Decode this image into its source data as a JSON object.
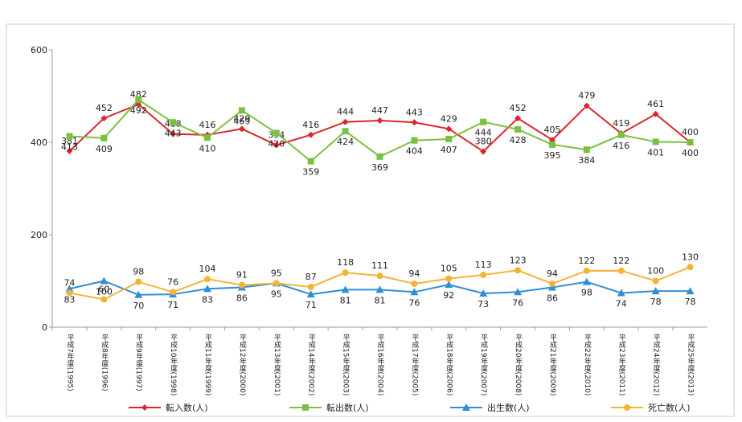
{
  "chart_data": {
    "type": "line",
    "categories": [
      "平成7年度(1995)",
      "平成8年度(1996)",
      "平成9年度(1997)",
      "平成10年度(1998)",
      "平成11年度(1999)",
      "平成12年度(2000)",
      "平成13年度(2001)",
      "平成14年度(2002)",
      "平成15年度(2003)",
      "平成16年度(2004)",
      "平成17年度(2005)",
      "平成18年度(2006)",
      "平成19年度(2007)",
      "平成20年度(2008)",
      "平成21年度(2009)",
      "平成22年度(2010)",
      "平成23年度(2011)",
      "平成24年度(2012)",
      "平成25年度(2013)"
    ],
    "series": [
      {
        "name": "転入数(人)",
        "color": "#d9272e",
        "values": [
          381,
          452,
          482,
          418,
          416,
          429,
          394,
          416,
          444,
          447,
          443,
          429,
          380,
          452,
          405,
          479,
          419,
          461,
          400
        ]
      },
      {
        "name": "転出数(人)",
        "color": "#7ac142",
        "values": [
          413,
          409,
          492,
          443,
          410,
          469,
          420,
          359,
          424,
          369,
          404,
          407,
          444,
          428,
          395,
          384,
          416,
          401,
          400
        ]
      },
      {
        "name": "出生数(人)",
        "color": "#2e8fd6",
        "values": [
          83,
          100,
          70,
          71,
          83,
          86,
          95,
          71,
          81,
          81,
          76,
          92,
          73,
          76,
          86,
          98,
          74,
          78,
          78
        ]
      },
      {
        "name": "死亡数(人)",
        "color": "#f5b335",
        "values": [
          74,
          60,
          98,
          76,
          104,
          91,
          95,
          87,
          118,
          111,
          94,
          105,
          113,
          123,
          94,
          122,
          122,
          100,
          130
        ]
      }
    ],
    "ylim": [
      0,
      600
    ],
    "yticks": [
      0,
      200,
      400,
      600
    ],
    "grid": false,
    "legend": "bottom"
  }
}
